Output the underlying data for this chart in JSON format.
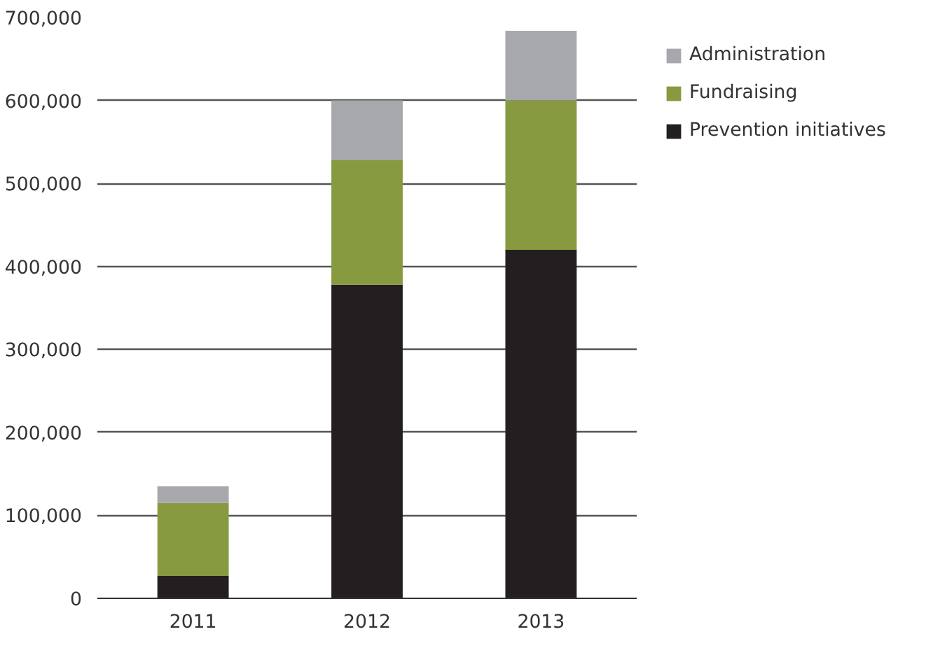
{
  "chart_data": {
    "type": "bar",
    "stacked": true,
    "categories": [
      "2011",
      "2012",
      "2013"
    ],
    "series": [
      {
        "name": "Prevention initiatives",
        "color": "#231f20",
        "values": [
          27000,
          378000,
          420000
        ]
      },
      {
        "name": "Fundraising",
        "color": "#879a3f",
        "values": [
          88000,
          150000,
          180000
        ]
      },
      {
        "name": "Administration",
        "color": "#a7a8ab",
        "values": [
          20000,
          72000,
          84000
        ]
      }
    ],
    "ylim": [
      0,
      700000
    ],
    "yticks": [
      {
        "value": 0,
        "label": "0"
      },
      {
        "value": 100000,
        "label": "100,000"
      },
      {
        "value": 200000,
        "label": "200,000"
      },
      {
        "value": 300000,
        "label": "300,000"
      },
      {
        "value": 400000,
        "label": "400,000"
      },
      {
        "value": 500000,
        "label": "500,000"
      },
      {
        "value": 600000,
        "label": "600,000"
      },
      {
        "value": 700000,
        "label": "700,000"
      }
    ],
    "grid": "y",
    "legend": "top right"
  }
}
